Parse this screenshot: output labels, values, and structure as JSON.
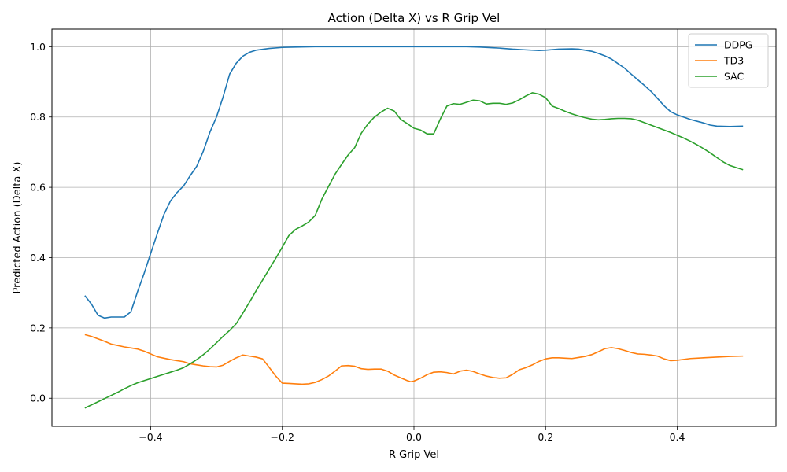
{
  "chart_data": {
    "type": "line",
    "title": "Action (Delta X) vs R Grip Vel",
    "xlabel": "R Grip Vel",
    "ylabel": "Predicted Action (Delta X)",
    "xlim": [
      -0.55,
      0.55
    ],
    "ylim": [
      -0.08,
      1.05
    ],
    "xticks": [
      -0.4,
      -0.2,
      0.0,
      0.2,
      0.4
    ],
    "xtick_labels": [
      "−0.4",
      "−0.2",
      "0.0",
      "0.2",
      "0.4"
    ],
    "yticks": [
      0.0,
      0.2,
      0.4,
      0.6,
      0.8,
      1.0
    ],
    "ytick_labels": [
      "0.0",
      "0.2",
      "0.4",
      "0.6",
      "0.8",
      "1.0"
    ],
    "grid": true,
    "legend_position": "top-right",
    "series": [
      {
        "name": "DDPG",
        "color": "#1f77b4",
        "points": [
          [
            -0.5,
            0.292
          ],
          [
            -0.49,
            0.268
          ],
          [
            -0.48,
            0.236
          ],
          [
            -0.47,
            0.228
          ],
          [
            -0.46,
            0.231
          ],
          [
            -0.45,
            0.231
          ],
          [
            -0.44,
            0.231
          ],
          [
            -0.43,
            0.246
          ],
          [
            -0.42,
            0.303
          ],
          [
            -0.41,
            0.355
          ],
          [
            -0.4,
            0.412
          ],
          [
            -0.39,
            0.468
          ],
          [
            -0.38,
            0.522
          ],
          [
            -0.37,
            0.561
          ],
          [
            -0.36,
            0.585
          ],
          [
            -0.35,
            0.604
          ],
          [
            -0.34,
            0.633
          ],
          [
            -0.33,
            0.66
          ],
          [
            -0.32,
            0.703
          ],
          [
            -0.31,
            0.757
          ],
          [
            -0.3,
            0.8
          ],
          [
            -0.29,
            0.857
          ],
          [
            -0.28,
            0.922
          ],
          [
            -0.27,
            0.953
          ],
          [
            -0.26,
            0.973
          ],
          [
            -0.25,
            0.984
          ],
          [
            -0.24,
            0.99
          ],
          [
            -0.22,
            0.995
          ],
          [
            -0.2,
            0.998
          ],
          [
            -0.18,
            0.999
          ],
          [
            -0.15,
            1.0
          ],
          [
            -0.1,
            1.0
          ],
          [
            0.0,
            1.0
          ],
          [
            0.05,
            1.0
          ],
          [
            0.08,
            1.0
          ],
          [
            0.1,
            0.999
          ],
          [
            0.12,
            0.997
          ],
          [
            0.13,
            0.996
          ],
          [
            0.15,
            0.993
          ],
          [
            0.17,
            0.991
          ],
          [
            0.19,
            0.989
          ],
          [
            0.2,
            0.99
          ],
          [
            0.22,
            0.993
          ],
          [
            0.24,
            0.994
          ],
          [
            0.25,
            0.993
          ],
          [
            0.27,
            0.987
          ],
          [
            0.28,
            0.981
          ],
          [
            0.29,
            0.974
          ],
          [
            0.3,
            0.965
          ],
          [
            0.31,
            0.952
          ],
          [
            0.32,
            0.939
          ],
          [
            0.33,
            0.922
          ],
          [
            0.34,
            0.906
          ],
          [
            0.35,
            0.89
          ],
          [
            0.36,
            0.873
          ],
          [
            0.37,
            0.853
          ],
          [
            0.38,
            0.832
          ],
          [
            0.39,
            0.815
          ],
          [
            0.4,
            0.806
          ],
          [
            0.42,
            0.793
          ],
          [
            0.44,
            0.783
          ],
          [
            0.45,
            0.777
          ],
          [
            0.46,
            0.774
          ],
          [
            0.48,
            0.773
          ],
          [
            0.5,
            0.774
          ]
        ]
      },
      {
        "name": "TD3",
        "color": "#ff7f0e",
        "points": [
          [
            -0.5,
            0.181
          ],
          [
            -0.49,
            0.176
          ],
          [
            -0.48,
            0.169
          ],
          [
            -0.47,
            0.162
          ],
          [
            -0.46,
            0.154
          ],
          [
            -0.45,
            0.15
          ],
          [
            -0.44,
            0.146
          ],
          [
            -0.43,
            0.143
          ],
          [
            -0.42,
            0.14
          ],
          [
            -0.41,
            0.134
          ],
          [
            -0.4,
            0.126
          ],
          [
            -0.39,
            0.118
          ],
          [
            -0.38,
            0.114
          ],
          [
            -0.37,
            0.11
          ],
          [
            -0.36,
            0.107
          ],
          [
            -0.35,
            0.104
          ],
          [
            -0.34,
            0.098
          ],
          [
            -0.33,
            0.095
          ],
          [
            -0.32,
            0.092
          ],
          [
            -0.31,
            0.09
          ],
          [
            -0.3,
            0.089
          ],
          [
            -0.29,
            0.094
          ],
          [
            -0.28,
            0.105
          ],
          [
            -0.27,
            0.115
          ],
          [
            -0.26,
            0.123
          ],
          [
            -0.25,
            0.12
          ],
          [
            -0.24,
            0.117
          ],
          [
            -0.23,
            0.112
          ],
          [
            -0.22,
            0.088
          ],
          [
            -0.21,
            0.063
          ],
          [
            -0.2,
            0.043
          ],
          [
            -0.19,
            0.042
          ],
          [
            -0.18,
            0.041
          ],
          [
            -0.17,
            0.04
          ],
          [
            -0.16,
            0.041
          ],
          [
            -0.15,
            0.045
          ],
          [
            -0.14,
            0.053
          ],
          [
            -0.13,
            0.063
          ],
          [
            -0.12,
            0.077
          ],
          [
            -0.11,
            0.092
          ],
          [
            -0.1,
            0.093
          ],
          [
            -0.09,
            0.091
          ],
          [
            -0.08,
            0.084
          ],
          [
            -0.07,
            0.082
          ],
          [
            -0.06,
            0.083
          ],
          [
            -0.05,
            0.083
          ],
          [
            -0.04,
            0.077
          ],
          [
            -0.03,
            0.066
          ],
          [
            -0.02,
            0.058
          ],
          [
            -0.01,
            0.05
          ],
          [
            -0.005,
            0.047
          ],
          [
            0.0,
            0.049
          ],
          [
            0.01,
            0.057
          ],
          [
            0.02,
            0.067
          ],
          [
            0.03,
            0.074
          ],
          [
            0.04,
            0.075
          ],
          [
            0.05,
            0.073
          ],
          [
            0.06,
            0.069
          ],
          [
            0.07,
            0.077
          ],
          [
            0.08,
            0.08
          ],
          [
            0.09,
            0.076
          ],
          [
            0.1,
            0.069
          ],
          [
            0.11,
            0.063
          ],
          [
            0.12,
            0.059
          ],
          [
            0.13,
            0.057
          ],
          [
            0.14,
            0.058
          ],
          [
            0.15,
            0.068
          ],
          [
            0.16,
            0.081
          ],
          [
            0.17,
            0.087
          ],
          [
            0.18,
            0.095
          ],
          [
            0.19,
            0.105
          ],
          [
            0.2,
            0.112
          ],
          [
            0.21,
            0.115
          ],
          [
            0.22,
            0.115
          ],
          [
            0.23,
            0.114
          ],
          [
            0.24,
            0.113
          ],
          [
            0.25,
            0.116
          ],
          [
            0.26,
            0.119
          ],
          [
            0.27,
            0.124
          ],
          [
            0.28,
            0.132
          ],
          [
            0.29,
            0.141
          ],
          [
            0.3,
            0.144
          ],
          [
            0.31,
            0.141
          ],
          [
            0.32,
            0.136
          ],
          [
            0.33,
            0.13
          ],
          [
            0.34,
            0.126
          ],
          [
            0.35,
            0.125
          ],
          [
            0.36,
            0.123
          ],
          [
            0.37,
            0.12
          ],
          [
            0.38,
            0.112
          ],
          [
            0.39,
            0.107
          ],
          [
            0.4,
            0.108
          ],
          [
            0.42,
            0.113
          ],
          [
            0.44,
            0.115
          ],
          [
            0.46,
            0.117
          ],
          [
            0.48,
            0.119
          ],
          [
            0.5,
            0.12
          ]
        ]
      },
      {
        "name": "SAC",
        "color": "#2ca02c",
        "points": [
          [
            -0.5,
            -0.028
          ],
          [
            -0.49,
            -0.019
          ],
          [
            -0.48,
            -0.01
          ],
          [
            -0.47,
            -0.001
          ],
          [
            -0.46,
            0.008
          ],
          [
            -0.45,
            0.017
          ],
          [
            -0.44,
            0.027
          ],
          [
            -0.43,
            0.036
          ],
          [
            -0.42,
            0.044
          ],
          [
            -0.41,
            0.05
          ],
          [
            -0.4,
            0.056
          ],
          [
            -0.39,
            0.062
          ],
          [
            -0.38,
            0.068
          ],
          [
            -0.37,
            0.074
          ],
          [
            -0.36,
            0.08
          ],
          [
            -0.35,
            0.087
          ],
          [
            -0.34,
            0.098
          ],
          [
            -0.33,
            0.11
          ],
          [
            -0.32,
            0.124
          ],
          [
            -0.31,
            0.14
          ],
          [
            -0.3,
            0.158
          ],
          [
            -0.29,
            0.176
          ],
          [
            -0.28,
            0.193
          ],
          [
            -0.27,
            0.212
          ],
          [
            -0.26,
            0.242
          ],
          [
            -0.25,
            0.273
          ],
          [
            -0.24,
            0.305
          ],
          [
            -0.23,
            0.336
          ],
          [
            -0.22,
            0.367
          ],
          [
            -0.21,
            0.398
          ],
          [
            -0.2,
            0.43
          ],
          [
            -0.19,
            0.463
          ],
          [
            -0.18,
            0.48
          ],
          [
            -0.17,
            0.49
          ],
          [
            -0.16,
            0.501
          ],
          [
            -0.15,
            0.52
          ],
          [
            -0.14,
            0.566
          ],
          [
            -0.13,
            0.602
          ],
          [
            -0.12,
            0.637
          ],
          [
            -0.11,
            0.665
          ],
          [
            -0.1,
            0.692
          ],
          [
            -0.09,
            0.713
          ],
          [
            -0.08,
            0.754
          ],
          [
            -0.07,
            0.78
          ],
          [
            -0.06,
            0.8
          ],
          [
            -0.05,
            0.814
          ],
          [
            -0.04,
            0.825
          ],
          [
            -0.03,
            0.817
          ],
          [
            -0.02,
            0.793
          ],
          [
            -0.01,
            0.781
          ],
          [
            0.0,
            0.768
          ],
          [
            0.01,
            0.763
          ],
          [
            0.02,
            0.752
          ],
          [
            0.03,
            0.752
          ],
          [
            0.04,
            0.794
          ],
          [
            0.05,
            0.831
          ],
          [
            0.06,
            0.838
          ],
          [
            0.07,
            0.836
          ],
          [
            0.08,
            0.842
          ],
          [
            0.09,
            0.848
          ],
          [
            0.1,
            0.846
          ],
          [
            0.11,
            0.837
          ],
          [
            0.12,
            0.839
          ],
          [
            0.13,
            0.839
          ],
          [
            0.14,
            0.836
          ],
          [
            0.15,
            0.84
          ],
          [
            0.16,
            0.849
          ],
          [
            0.17,
            0.86
          ],
          [
            0.18,
            0.869
          ],
          [
            0.19,
            0.865
          ],
          [
            0.2,
            0.855
          ],
          [
            0.21,
            0.831
          ],
          [
            0.22,
            0.824
          ],
          [
            0.23,
            0.816
          ],
          [
            0.24,
            0.809
          ],
          [
            0.25,
            0.803
          ],
          [
            0.26,
            0.798
          ],
          [
            0.27,
            0.794
          ],
          [
            0.28,
            0.792
          ],
          [
            0.29,
            0.793
          ],
          [
            0.3,
            0.795
          ],
          [
            0.31,
            0.796
          ],
          [
            0.32,
            0.796
          ],
          [
            0.33,
            0.795
          ],
          [
            0.34,
            0.791
          ],
          [
            0.35,
            0.784
          ],
          [
            0.36,
            0.777
          ],
          [
            0.37,
            0.77
          ],
          [
            0.38,
            0.763
          ],
          [
            0.39,
            0.756
          ],
          [
            0.4,
            0.748
          ],
          [
            0.41,
            0.74
          ],
          [
            0.42,
            0.731
          ],
          [
            0.43,
            0.721
          ],
          [
            0.44,
            0.71
          ],
          [
            0.45,
            0.698
          ],
          [
            0.46,
            0.685
          ],
          [
            0.47,
            0.672
          ],
          [
            0.48,
            0.662
          ],
          [
            0.49,
            0.656
          ],
          [
            0.5,
            0.65
          ]
        ]
      }
    ]
  }
}
